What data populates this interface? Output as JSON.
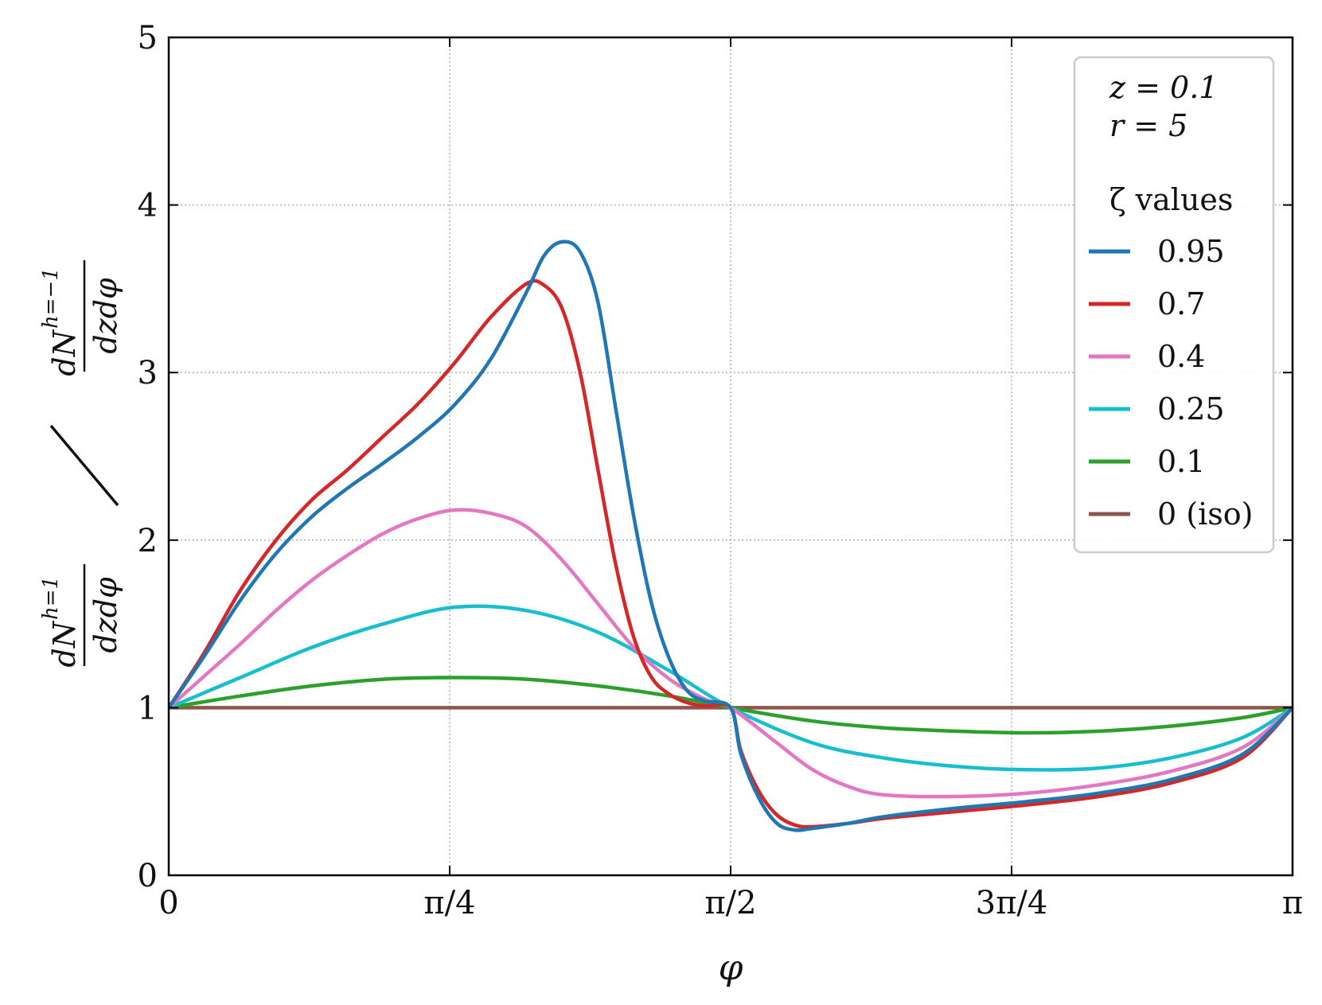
{
  "chart_data": {
    "type": "line",
    "xlabel": "φ",
    "ylabel": {
      "numerator": {
        "main": "dN",
        "sup": "h=1",
        "den": "dzdφ"
      },
      "denominator": {
        "main": "dN",
        "sup": "h=−1",
        "den": "dzdφ"
      }
    },
    "xlim": [
      0,
      3.14159
    ],
    "ylim": [
      0,
      5
    ],
    "x_ticks": [
      {
        "value": 0,
        "label": "0"
      },
      {
        "value": 0.7854,
        "label": "π/4"
      },
      {
        "value": 1.5708,
        "label": "π/2"
      },
      {
        "value": 2.3562,
        "label": "3π/4"
      },
      {
        "value": 3.14159,
        "label": "π"
      }
    ],
    "y_ticks": [
      {
        "value": 0,
        "label": "0"
      },
      {
        "value": 1,
        "label": "1"
      },
      {
        "value": 2,
        "label": "2"
      },
      {
        "value": 3,
        "label": "3"
      },
      {
        "value": 4,
        "label": "4"
      },
      {
        "value": 5,
        "label": "5"
      }
    ],
    "grid": true,
    "legend": {
      "placement": "top-right",
      "params": [
        "z = 0.1",
        "r = 5"
      ],
      "title": "ζ values"
    },
    "series": [
      {
        "name": "0.95",
        "color": "#1f77b4",
        "x": [
          0,
          0.1,
          0.2,
          0.3,
          0.4,
          0.5,
          0.6,
          0.7,
          0.8,
          0.9,
          1.0,
          1.05,
          1.1,
          1.15,
          1.2,
          1.25,
          1.3,
          1.35,
          1.4,
          1.45,
          1.5,
          1.5708,
          1.6,
          1.65,
          1.7,
          1.75,
          1.8,
          1.9,
          2.0,
          2.2,
          2.4,
          2.6,
          2.8,
          3.0,
          3.14159
        ],
        "y": [
          1,
          1.31,
          1.64,
          1.92,
          2.14,
          2.31,
          2.46,
          2.62,
          2.81,
          3.08,
          3.48,
          3.7,
          3.78,
          3.72,
          3.42,
          2.78,
          2.14,
          1.62,
          1.29,
          1.1,
          1.04,
          1.0,
          0.72,
          0.46,
          0.31,
          0.27,
          0.28,
          0.31,
          0.35,
          0.4,
          0.44,
          0.49,
          0.57,
          0.72,
          1.0
        ]
      },
      {
        "name": "0.7",
        "color": "#d62728",
        "x": [
          0,
          0.1,
          0.2,
          0.3,
          0.4,
          0.5,
          0.6,
          0.7,
          0.8,
          0.9,
          1.0,
          1.05,
          1.1,
          1.15,
          1.2,
          1.25,
          1.3,
          1.35,
          1.4,
          1.45,
          1.5,
          1.5708,
          1.6,
          1.65,
          1.7,
          1.75,
          1.8,
          1.9,
          2.0,
          2.2,
          2.4,
          2.6,
          2.8,
          3.0,
          3.14159
        ],
        "y": [
          1,
          1.33,
          1.7,
          2.0,
          2.24,
          2.42,
          2.62,
          2.82,
          3.06,
          3.33,
          3.53,
          3.52,
          3.38,
          3.0,
          2.42,
          1.85,
          1.42,
          1.18,
          1.08,
          1.03,
          1.01,
          1.0,
          0.74,
          0.5,
          0.36,
          0.3,
          0.29,
          0.31,
          0.34,
          0.38,
          0.42,
          0.47,
          0.55,
          0.7,
          1.0
        ]
      },
      {
        "name": "0.4",
        "color": "#e377c2",
        "x": [
          0,
          0.1,
          0.2,
          0.3,
          0.4,
          0.5,
          0.6,
          0.7,
          0.8,
          0.9,
          1.0,
          1.1,
          1.2,
          1.3,
          1.4,
          1.5,
          1.5708,
          1.7,
          1.8,
          1.9,
          2.0,
          2.2,
          2.4,
          2.6,
          2.8,
          3.0,
          3.14159
        ],
        "y": [
          1,
          1.19,
          1.38,
          1.58,
          1.76,
          1.91,
          2.04,
          2.13,
          2.18,
          2.16,
          2.08,
          1.88,
          1.62,
          1.36,
          1.17,
          1.05,
          1.0,
          0.79,
          0.63,
          0.53,
          0.48,
          0.47,
          0.49,
          0.54,
          0.62,
          0.76,
          1.0
        ]
      },
      {
        "name": "0.25",
        "color": "#17becf",
        "x": [
          0,
          0.2,
          0.4,
          0.6,
          0.8,
          1.0,
          1.2,
          1.4,
          1.5708,
          1.8,
          2.0,
          2.2,
          2.4,
          2.6,
          2.8,
          3.0,
          3.14159
        ],
        "y": [
          1,
          1.18,
          1.36,
          1.5,
          1.6,
          1.58,
          1.45,
          1.22,
          1.0,
          0.79,
          0.7,
          0.65,
          0.63,
          0.64,
          0.7,
          0.82,
          1.0
        ]
      },
      {
        "name": "0.1",
        "color": "#2ca02c",
        "x": [
          0,
          0.2,
          0.4,
          0.6,
          0.8,
          1.0,
          1.2,
          1.4,
          1.5708,
          1.8,
          2.0,
          2.2,
          2.4,
          2.6,
          2.8,
          3.0,
          3.14159
        ],
        "y": [
          1,
          1.07,
          1.13,
          1.17,
          1.18,
          1.17,
          1.13,
          1.07,
          1.0,
          0.92,
          0.88,
          0.86,
          0.85,
          0.86,
          0.89,
          0.94,
          1.0
        ]
      },
      {
        "name": "0 (iso)",
        "color": "#8c564b",
        "x": [
          0,
          3.14159
        ],
        "y": [
          1,
          1
        ]
      }
    ]
  }
}
